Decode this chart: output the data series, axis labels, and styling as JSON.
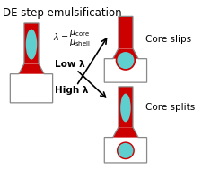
{
  "title": "DE step emulsification",
  "title_fontsize": 8.5,
  "low_lambda": "Low λ",
  "high_lambda": "High λ",
  "core_splits": "Core splits",
  "core_slips": "Core slips",
  "colors": {
    "red": "#CC0000",
    "teal": "#5ECECE",
    "white": "#FFFFFF",
    "gray_outline": "#888888",
    "black": "#000000",
    "bg": "#FFFFFF"
  },
  "fig_width": 2.26,
  "fig_height": 1.89,
  "dpi": 100
}
